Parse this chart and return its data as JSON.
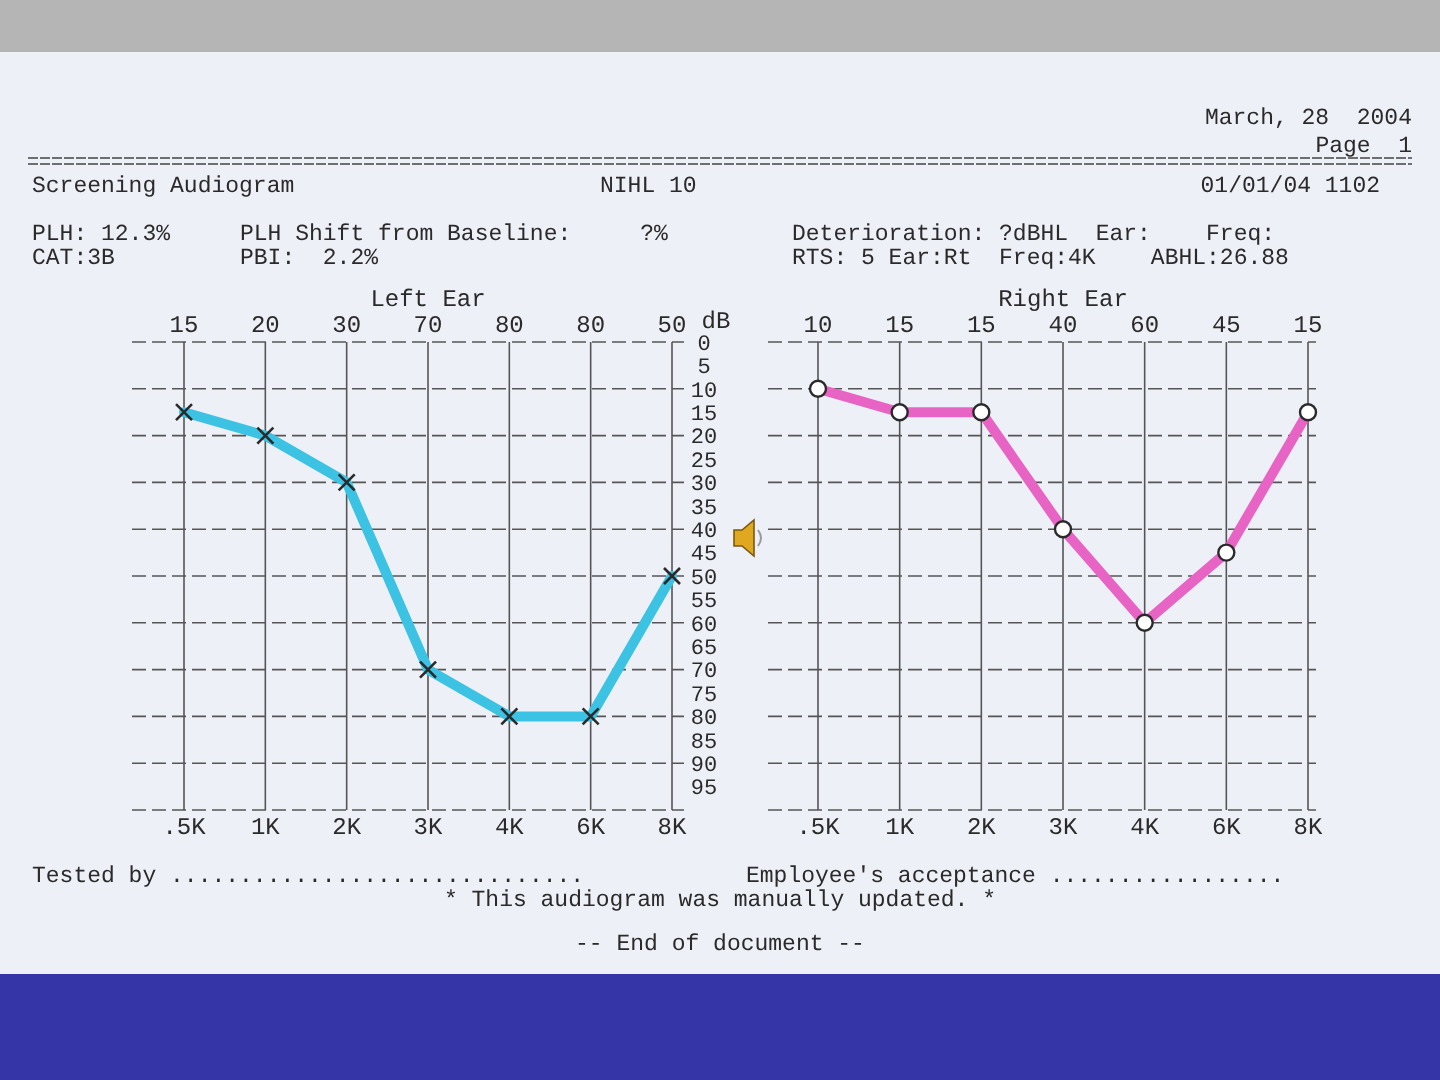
{
  "chart_data": [
    {
      "type": "line",
      "title": "Left Ear",
      "ylabel": "dB",
      "categories": [
        ".5K",
        "1K",
        "2K",
        "3K",
        "4K",
        "6K",
        "8K"
      ],
      "values": [
        15,
        20,
        30,
        70,
        80,
        80,
        50
      ],
      "color": "#3cc2e2",
      "marker": "cross",
      "line_style": "solid",
      "grid": true,
      "ylim": [
        100,
        0
      ],
      "yticks": [
        0,
        5,
        10,
        15,
        20,
        25,
        30,
        35,
        40,
        45,
        50,
        55,
        60,
        65,
        70,
        75,
        80,
        85,
        90,
        95,
        {
          "value": 100,
          "label": null
        }
      ],
      "annotations": [
        "March, 28  2004",
        "Page  1",
        "Screening Audiogram",
        "NIHL 10",
        "01/01/04 1102",
        "PLH: 12.3%",
        "PLH Shift from Baseline:     ?%",
        "Deterioration: ?dBHL  Ear:    Freq:",
        "CAT:3B",
        "PBI:  2.2%",
        "RTS: 5 Ear:Rt  Freq:4K    ABHL:26.88",
        "Tested by ..............................",
        "Employee's acceptance .................",
        "* This audiogram was manually updated. *",
        "-- End of document --",
        "15",
        "20",
        "30",
        "70",
        "80",
        "80",
        "50"
      ]
    },
    {
      "type": "line",
      "title": "Right Ear",
      "categories": [
        ".5K",
        "1K",
        "2K",
        "3K",
        "4K",
        "6K",
        "8K"
      ],
      "values": [
        10,
        15,
        15,
        40,
        60,
        45,
        15
      ],
      "color": "#e864c4",
      "marker": "circle",
      "line_style": "solid",
      "annotations": [
        "10",
        "15",
        "15",
        "40",
        "60",
        "45",
        "15"
      ],
      "grid": true,
      "tick_labels": "x",
      "ylim": [
        100,
        0
      ],
      "yticks": [
        0,
        5,
        10,
        15,
        20,
        25,
        30,
        35,
        40,
        45,
        50,
        55,
        60,
        65,
        70,
        75,
        80,
        85,
        90,
        95,
        {
          "value": 100,
          "label": null
        }
      ]
    }
  ]
}
